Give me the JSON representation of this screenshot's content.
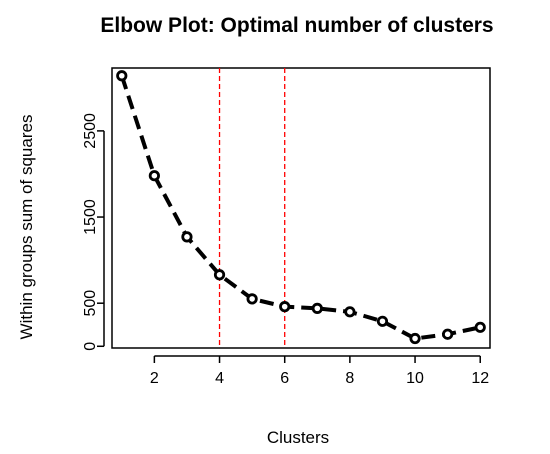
{
  "chart_data": {
    "type": "line",
    "title": "Elbow Plot: Optimal number of clusters",
    "xlabel": "Clusters",
    "ylabel": "Within groups sum of squares",
    "x": [
      1,
      2,
      3,
      4,
      5,
      6,
      7,
      8,
      9,
      10,
      11,
      12
    ],
    "series": [
      {
        "values": [
          3140,
          1980,
          1270,
          830,
          550,
          460,
          440,
          400,
          290,
          90,
          140,
          220
        ]
      }
    ],
    "xlim": [
      0.7,
      12.3
    ],
    "ylim": [
      -20,
      3230
    ],
    "xticks": [
      2,
      4,
      6,
      8,
      10,
      12
    ],
    "yticks": [
      0,
      500,
      1500,
      2500
    ],
    "vlines": [
      4,
      6
    ],
    "line_style": "dashed",
    "marker": "open-circle",
    "colors": {
      "series": "#000000",
      "vline": "#ff0000"
    },
    "grid": false,
    "legend": "none"
  }
}
